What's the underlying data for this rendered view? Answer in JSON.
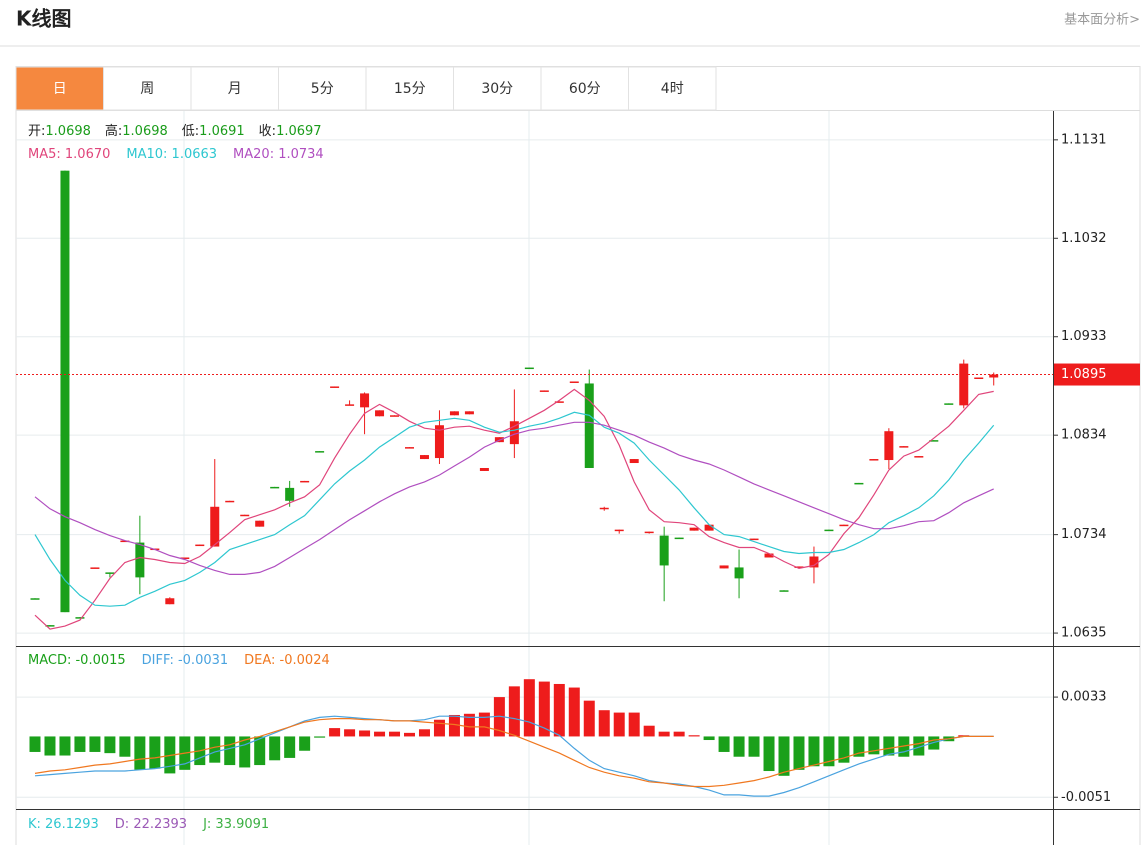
{
  "header": {
    "title": "K线图",
    "link": "基本面分析>"
  },
  "tabs": [
    "日",
    "周",
    "月",
    "5分",
    "15分",
    "30分",
    "60分",
    "4时"
  ],
  "active_tab": 0,
  "chart_data": [
    {
      "type": "candlestick",
      "info": [
        {
          "label": "开:",
          "value": "1.0698"
        },
        {
          "label": "高:",
          "value": "1.0698"
        },
        {
          "label": "低:",
          "value": "1.0691"
        },
        {
          "label": "收:",
          "value": "1.0697"
        }
      ],
      "info_value_color": "#1a9c1a",
      "up_color": "#ee1c1c",
      "down_color": "#1aa01a",
      "open": [
        1.067,
        1.0643,
        1.11,
        1.0651,
        1.07,
        1.0696,
        1.0727,
        1.0726,
        1.0719,
        1.0664,
        1.071,
        1.0723,
        1.0722,
        1.0767,
        1.0753,
        1.0742,
        1.0782,
        1.0781,
        1.0787,
        1.0818,
        1.0882,
        1.0864,
        1.0862,
        1.0853,
        1.0853,
        1.0821,
        1.081,
        1.0811,
        1.0854,
        1.0855,
        1.0798,
        1.0827,
        1.0825,
        1.0902,
        1.0878,
        1.0867,
        1.0887,
        1.0886,
        1.076,
        1.0738,
        1.0806,
        1.0736,
        1.0733,
        1.0731,
        1.0738,
        1.0738,
        1.07,
        1.0701,
        1.0729,
        1.0711,
        1.0678,
        1.0701,
        1.0701,
        1.0739,
        1.0743,
        1.0786,
        1.0809,
        1.0809,
        1.0822,
        1.0812,
        1.0829,
        1.0866,
        1.0864,
        1.0891,
        1.0892
      ],
      "high": [
        1.067,
        1.0643,
        1.11,
        1.0651,
        1.0701,
        1.0696,
        1.0728,
        1.0753,
        1.072,
        1.0671,
        1.0711,
        1.0724,
        1.081,
        1.0768,
        1.0754,
        1.0748,
        1.0782,
        1.0788,
        1.0788,
        1.0818,
        1.0883,
        1.0869,
        1.0877,
        1.0859,
        1.0854,
        1.0822,
        1.0814,
        1.0859,
        1.0858,
        1.0858,
        1.0801,
        1.0832,
        1.088,
        1.0902,
        1.0879,
        1.0868,
        1.0888,
        1.09,
        1.0762,
        1.0739,
        1.081,
        1.0737,
        1.0742,
        1.0731,
        1.0741,
        1.0744,
        1.0703,
        1.0719,
        1.073,
        1.0715,
        1.0678,
        1.0702,
        1.0722,
        1.0739,
        1.0744,
        1.0786,
        1.081,
        1.0841,
        1.0823,
        1.0813,
        1.0829,
        1.0866,
        1.091,
        1.0892,
        1.0897
      ],
      "low": [
        1.0669,
        1.0642,
        1.0656,
        1.065,
        1.07,
        1.0691,
        1.0727,
        1.0674,
        1.0719,
        1.0664,
        1.071,
        1.0723,
        1.0722,
        1.0767,
        1.0753,
        1.0742,
        1.0781,
        1.0762,
        1.0787,
        1.0817,
        1.0882,
        1.0864,
        1.0835,
        1.0853,
        1.0853,
        1.0821,
        1.081,
        1.0805,
        1.0854,
        1.0855,
        1.0798,
        1.0827,
        1.0811,
        1.0901,
        1.0878,
        1.0867,
        1.0887,
        1.0801,
        1.0758,
        1.0735,
        1.0806,
        1.0735,
        1.0667,
        1.073,
        1.0738,
        1.0738,
        1.07,
        1.067,
        1.0729,
        1.0711,
        1.0677,
        1.0701,
        1.0685,
        1.0738,
        1.0743,
        1.0785,
        1.0809,
        1.08,
        1.0822,
        1.0812,
        1.0828,
        1.0865,
        1.0861,
        1.0891,
        1.0884
      ],
      "close": [
        1.0669,
        1.0642,
        1.0656,
        1.065,
        1.0701,
        1.0695,
        1.0728,
        1.0691,
        1.072,
        1.067,
        1.0711,
        1.0724,
        1.0762,
        1.0768,
        1.0754,
        1.0748,
        1.0781,
        1.0768,
        1.0788,
        1.0817,
        1.0883,
        1.0865,
        1.0876,
        1.0859,
        1.0854,
        1.0822,
        1.0814,
        1.0844,
        1.0858,
        1.0858,
        1.0801,
        1.0832,
        1.0848,
        1.0901,
        1.0879,
        1.0868,
        1.0888,
        1.0801,
        1.0761,
        1.0739,
        1.081,
        1.0737,
        1.0703,
        1.073,
        1.0741,
        1.0744,
        1.0703,
        1.069,
        1.073,
        1.0715,
        1.0677,
        1.0702,
        1.0712,
        1.0738,
        1.0744,
        1.0785,
        1.081,
        1.0838,
        1.0823,
        1.0813,
        1.0828,
        1.0865,
        1.0906,
        1.0892,
        1.0895
      ],
      "lines": [
        {
          "legend": "MA5: 1.0670",
          "color": "#e0457b",
          "values": [
            1.0653,
            1.0639,
            1.0642,
            1.0648,
            1.0668,
            1.069,
            1.0706,
            1.0711,
            1.0709,
            1.0706,
            1.0705,
            1.0712,
            1.0724,
            1.0736,
            1.0749,
            1.0754,
            1.0759,
            1.0766,
            1.0772,
            1.0784,
            1.0811,
            1.0835,
            1.0856,
            1.0865,
            1.0857,
            1.0848,
            1.0841,
            1.0839,
            1.0842,
            1.0843,
            1.0839,
            1.0836,
            1.0843,
            1.0851,
            1.0859,
            1.0869,
            1.088,
            1.0869,
            1.0853,
            1.0824,
            1.0787,
            1.0759,
            1.0747,
            1.0746,
            1.0744,
            1.0732,
            1.0726,
            1.0721,
            1.0721,
            1.0715,
            1.0707,
            1.07,
            1.0703,
            1.0714,
            1.0735,
            1.0751,
            1.0774,
            1.0799,
            1.0813,
            1.0819,
            1.0831,
            1.0843,
            1.0859,
            1.0875,
            1.0878
          ]
        },
        {
          "legend": "MA10: 1.0663",
          "color": "#2ec7d0",
          "values": [
            1.0734,
            1.0709,
            1.0688,
            1.0673,
            1.0663,
            1.0662,
            1.0663,
            1.0671,
            1.0677,
            1.0684,
            1.0688,
            1.0696,
            1.0706,
            1.0719,
            1.0724,
            1.0729,
            1.0734,
            1.0744,
            1.0753,
            1.0769,
            1.0785,
            1.0798,
            1.0809,
            1.0822,
            1.0832,
            1.0842,
            1.0847,
            1.0849,
            1.0851,
            1.0849,
            1.0842,
            1.0837,
            1.0839,
            1.0843,
            1.0846,
            1.0851,
            1.0857,
            1.0854,
            1.0842,
            1.0836,
            1.0826,
            1.0809,
            1.0794,
            1.0779,
            1.0761,
            1.0744,
            1.0734,
            1.0732,
            1.0727,
            1.0722,
            1.0717,
            1.0715,
            1.0716,
            1.0716,
            1.0719,
            1.0726,
            1.0734,
            1.0746,
            1.0753,
            1.0761,
            1.0773,
            1.0789,
            1.0809,
            1.0826,
            1.0844
          ]
        },
        {
          "legend": "MA20: 1.0734",
          "color": "#b04fc0",
          "values": [
            1.0772,
            1.076,
            1.0752,
            1.0746,
            1.0739,
            1.0733,
            1.0728,
            1.0724,
            1.0719,
            1.0713,
            1.0709,
            1.0703,
            1.0698,
            1.0694,
            1.0694,
            1.0696,
            1.0702,
            1.0711,
            1.072,
            1.0729,
            1.0739,
            1.0749,
            1.0758,
            1.0767,
            1.0775,
            1.0782,
            1.0787,
            1.0794,
            1.0803,
            1.0812,
            1.0822,
            1.0829,
            1.0835,
            1.0839,
            1.0841,
            1.0844,
            1.0847,
            1.0847,
            1.0844,
            1.0839,
            1.0834,
            1.0827,
            1.0821,
            1.0814,
            1.0809,
            1.0805,
            1.0799,
            1.0792,
            1.0785,
            1.0779,
            1.0773,
            1.0767,
            1.0761,
            1.0755,
            1.0749,
            1.0744,
            1.074,
            1.074,
            1.0743,
            1.0747,
            1.0748,
            1.0756,
            1.0766,
            1.0773,
            1.078
          ]
        }
      ],
      "last_price": 1.0895,
      "last_price_color": "#ee1c1c",
      "ylim": [
        1.0623,
        1.116
      ],
      "yticks": [
        1.1131,
        1.1032,
        1.0933,
        1.0834,
        1.0734,
        1.0635
      ],
      "grid": true
    },
    {
      "type": "macd",
      "legend": [
        {
          "text": "MACD: -0.0015",
          "color": "#1aa01a"
        },
        {
          "text": "DIFF: -0.0031",
          "color": "#4aa3df"
        },
        {
          "text": "DEA: -0.0024",
          "color": "#f07820"
        }
      ],
      "up_color": "#ee1c1c",
      "down_color": "#1aa01a",
      "histogram": [
        -0.0013,
        -0.0016,
        -0.0016,
        -0.0013,
        -0.0013,
        -0.0014,
        -0.0017,
        -0.0028,
        -0.0027,
        -0.0031,
        -0.0028,
        -0.0024,
        -0.0022,
        -0.0024,
        -0.0026,
        -0.0024,
        -0.002,
        -0.0018,
        -0.0012,
        -0.0001,
        0.0007,
        0.0006,
        0.0005,
        0.0004,
        0.0004,
        0.0003,
        0.0006,
        0.0014,
        0.0018,
        0.0019,
        0.002,
        0.0033,
        0.0042,
        0.0048,
        0.0046,
        0.0044,
        0.0041,
        0.003,
        0.0022,
        0.002,
        0.002,
        0.0009,
        0.0004,
        0.0004,
        0.0001,
        -0.0003,
        -0.0013,
        -0.0017,
        -0.0017,
        -0.0029,
        -0.0033,
        -0.0028,
        -0.0025,
        -0.0025,
        -0.0022,
        -0.0017,
        -0.0015,
        -0.0016,
        -0.0017,
        -0.0016,
        -0.0011,
        -0.0004,
        0.0001,
        0.0,
        0.0
      ],
      "lines": [
        {
          "color": "#4aa3df",
          "values": [
            -0.0033,
            -0.0032,
            -0.0031,
            -0.003,
            -0.0029,
            -0.0029,
            -0.0029,
            -0.0028,
            -0.0027,
            -0.0025,
            -0.0023,
            -0.0018,
            -0.0013,
            -0.001,
            -0.0007,
            -0.0002,
            0.0003,
            0.0008,
            0.0013,
            0.0016,
            0.0017,
            0.0016,
            0.0015,
            0.0014,
            0.0013,
            0.0013,
            0.0014,
            0.0017,
            0.0017,
            0.0016,
            0.0016,
            0.0017,
            0.0015,
            0.0012,
            0.0007,
            0.0001,
            -0.001,
            -0.002,
            -0.0027,
            -0.003,
            -0.0033,
            -0.0037,
            -0.0039,
            -0.004,
            -0.0042,
            -0.0045,
            -0.0049,
            -0.0049,
            -0.005,
            -0.005,
            -0.0047,
            -0.0043,
            -0.0038,
            -0.0033,
            -0.0028,
            -0.0023,
            -0.0019,
            -0.0015,
            -0.0013,
            -0.0009,
            -0.0005,
            -0.0002,
            0.0,
            0.0,
            0.0
          ]
        },
        {
          "color": "#f07820",
          "values": [
            -0.0031,
            -0.0029,
            -0.0028,
            -0.0026,
            -0.0024,
            -0.0023,
            -0.0021,
            -0.0019,
            -0.0018,
            -0.0016,
            -0.0014,
            -0.0012,
            -0.0009,
            -0.0007,
            -0.0003,
            0.0,
            0.0004,
            0.0008,
            0.0012,
            0.0014,
            0.0015,
            0.0015,
            0.0014,
            0.0014,
            0.0013,
            0.0013,
            0.0012,
            0.0011,
            0.001,
            0.0008,
            0.0008,
            0.0005,
            0.0001,
            -0.0004,
            -0.0009,
            -0.0014,
            -0.002,
            -0.0026,
            -0.003,
            -0.0033,
            -0.0035,
            -0.0038,
            -0.0039,
            -0.0041,
            -0.0042,
            -0.0042,
            -0.0041,
            -0.0039,
            -0.0037,
            -0.0034,
            -0.003,
            -0.0027,
            -0.0024,
            -0.0021,
            -0.0018,
            -0.0014,
            -0.0012,
            -0.001,
            -0.0008,
            -0.0006,
            -0.0003,
            -0.0002,
            0.0,
            0.0,
            0.0
          ]
        }
      ],
      "ylim": [
        -0.006,
        0.0075
      ],
      "yticks": [
        0.0033,
        -0.0051
      ],
      "grid": true
    },
    {
      "type": "kdj",
      "legend": [
        {
          "text": "K: 26.1293",
          "color": "#2ec7d0"
        },
        {
          "text": "D: 22.2393",
          "color": "#9b59b6"
        },
        {
          "text": "J: 33.9091",
          "color": "#3cb043"
        }
      ]
    }
  ]
}
